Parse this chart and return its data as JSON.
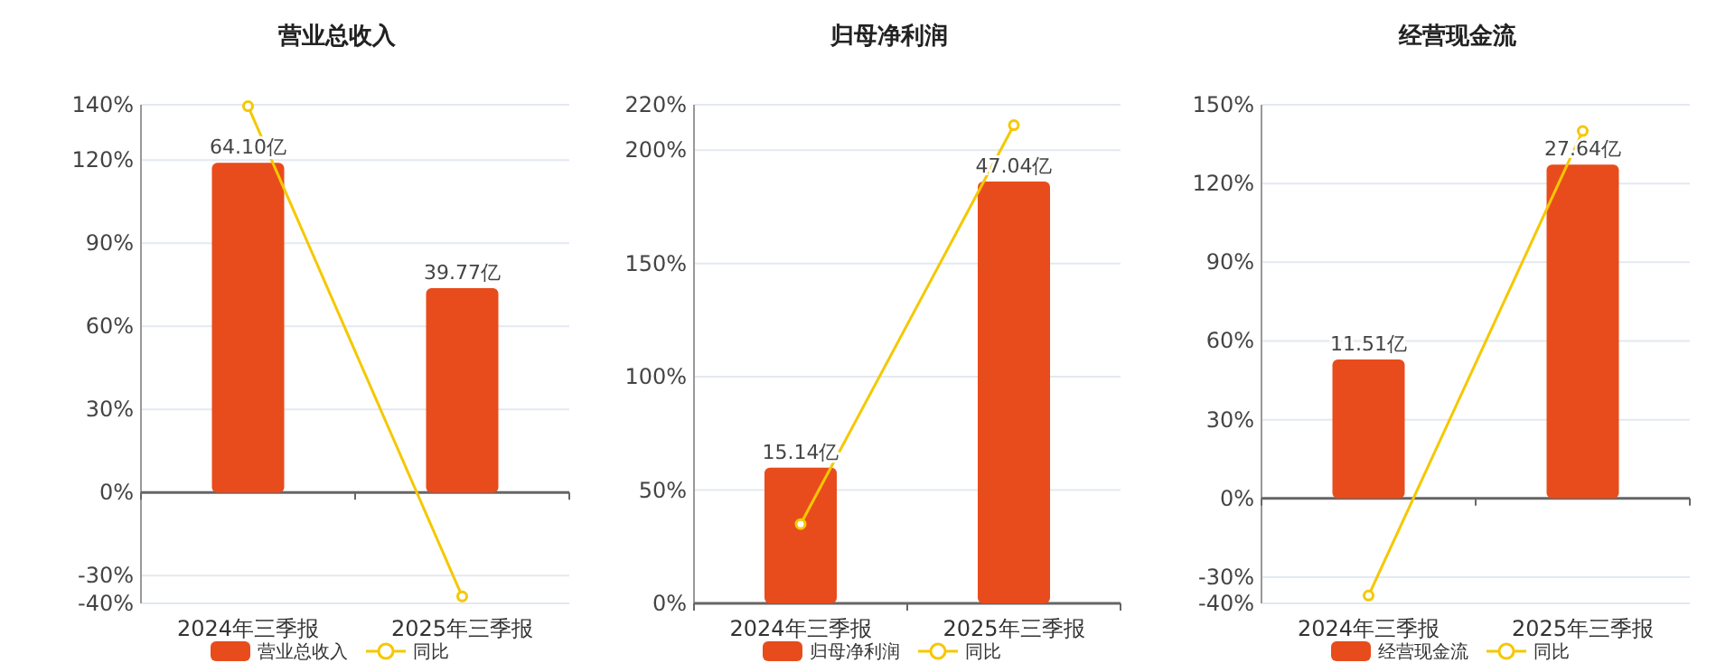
{
  "chart_data": [
    {
      "type": "bar",
      "title": "营业总收入",
      "categories": [
        "2024年三季报",
        "2025年三季报"
      ],
      "ylim": [
        -40,
        140
      ],
      "yticks": [
        {
          "value": -40,
          "label": "-40%"
        },
        {
          "value": -30,
          "label": "-30%"
        },
        {
          "value": 0,
          "label": "0%"
        },
        {
          "value": 30,
          "label": "30%"
        },
        {
          "value": 60,
          "label": "60%"
        },
        {
          "value": 90,
          "label": "90%"
        },
        {
          "value": 120,
          "label": "120%"
        },
        {
          "value": 140,
          "label": "140%"
        }
      ],
      "y2lim": [
        -21.5,
        75.4
      ],
      "grid": "y",
      "legend": "bottom",
      "marker": "circle",
      "series": [
        {
          "name": "营业总收入",
          "axis": "y2",
          "color": "#e84c1c",
          "values": [
            64.1,
            39.77
          ],
          "value_labels": [
            "64.10亿",
            "39.77亿"
          ]
        },
        {
          "name": "同比",
          "type": "line",
          "color": "#f5c800",
          "values": [
            139.5,
            -37.5
          ]
        }
      ]
    },
    {
      "type": "bar",
      "title": "归母净利润",
      "categories": [
        "2024年三季报",
        "2025年三季报"
      ],
      "ylim": [
        0,
        220
      ],
      "yticks": [
        {
          "value": 0,
          "label": "0%"
        },
        {
          "value": 50,
          "label": "50%"
        },
        {
          "value": 100,
          "label": "100%"
        },
        {
          "value": 150,
          "label": "150%"
        },
        {
          "value": 200,
          "label": "200%"
        },
        {
          "value": 220,
          "label": "220%"
        }
      ],
      "y2lim": [
        0,
        55.6
      ],
      "grid": "y",
      "legend": "bottom",
      "marker": "circle",
      "series": [
        {
          "name": "归母净利润",
          "axis": "y2",
          "color": "#e84c1c",
          "values": [
            15.14,
            47.04
          ],
          "value_labels": [
            "15.14亿",
            "47.04亿"
          ]
        },
        {
          "name": "同比",
          "type": "line",
          "color": "#f5c800",
          "values": [
            35,
            211
          ]
        }
      ]
    },
    {
      "type": "bar",
      "title": "经营现金流",
      "categories": [
        "2024年三季报",
        "2025年三季报"
      ],
      "ylim": [
        -40,
        150
      ],
      "yticks": [
        {
          "value": -40,
          "label": "-40%"
        },
        {
          "value": -30,
          "label": "-30%"
        },
        {
          "value": 0,
          "label": "0%"
        },
        {
          "value": 30,
          "label": "30%"
        },
        {
          "value": 60,
          "label": "60%"
        },
        {
          "value": 90,
          "label": "90%"
        },
        {
          "value": 120,
          "label": "120%"
        },
        {
          "value": 150,
          "label": "150%"
        }
      ],
      "y2lim": [
        -8.7,
        32.6
      ],
      "grid": "y",
      "legend": "bottom",
      "marker": "circle",
      "series": [
        {
          "name": "经营现金流",
          "axis": "y2",
          "color": "#e84c1c",
          "values": [
            11.51,
            27.64
          ],
          "value_labels": [
            "11.51亿",
            "27.64亿"
          ]
        },
        {
          "name": "同比",
          "type": "line",
          "color": "#f5c800",
          "values": [
            -37,
            140
          ]
        }
      ]
    }
  ]
}
